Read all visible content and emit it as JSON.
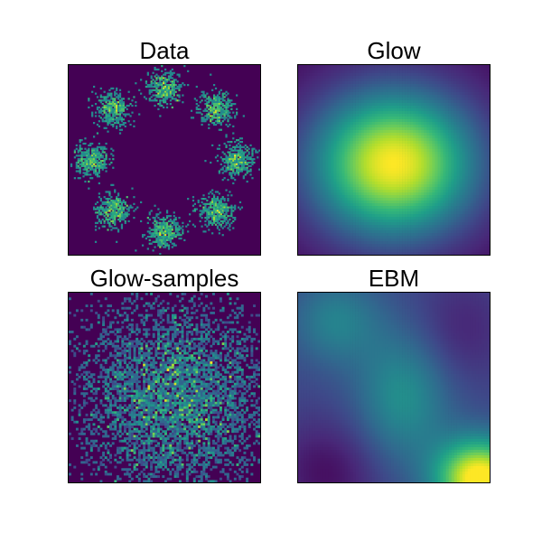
{
  "chart_data": [
    {
      "type": "heatmap",
      "title": "Data",
      "description_kind": "histogram of 8 gaussian clusters arranged on a ring",
      "colormap": "viridis",
      "clusters": [
        {
          "angle_deg": 90
        },
        {
          "angle_deg": 45
        },
        {
          "angle_deg": 0
        },
        {
          "angle_deg": -45
        },
        {
          "angle_deg": -90
        },
        {
          "angle_deg": -135
        },
        {
          "angle_deg": 180
        },
        {
          "angle_deg": 135
        }
      ]
    },
    {
      "type": "heatmap",
      "title": "Glow",
      "colormap": "viridis",
      "peak": "center-right",
      "peak_value": 1.0
    },
    {
      "type": "heatmap",
      "title": "Glow-samples",
      "colormap": "viridis",
      "distribution": "broad noisy gaussian, denser near center"
    },
    {
      "type": "heatmap",
      "title": "EBM",
      "colormap": "viridis",
      "peak": "bottom-right",
      "peak_value": 1.0
    }
  ],
  "colors": {
    "viridis_low": "#440154",
    "viridis_mid": "#21918c",
    "viridis_high": "#fde725"
  }
}
